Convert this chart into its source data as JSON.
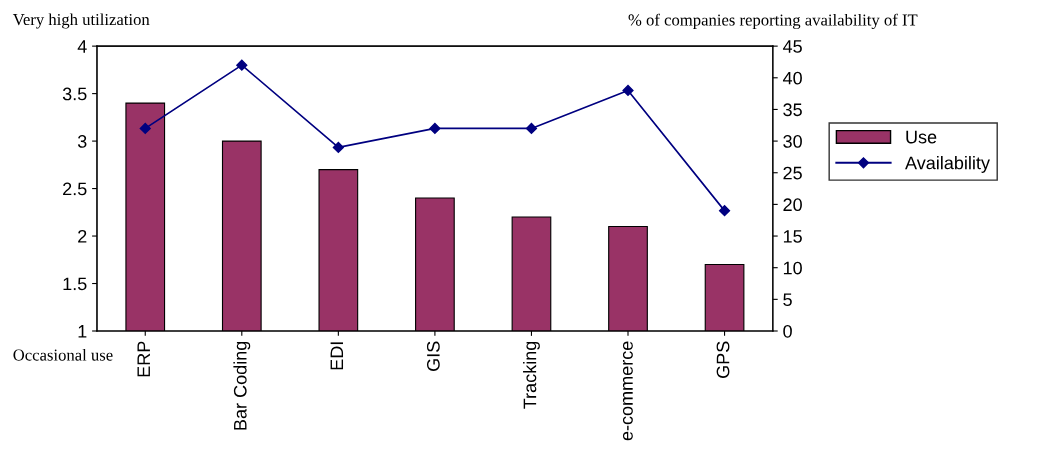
{
  "chart_data": {
    "type": "bar",
    "categories": [
      "ERP",
      "Bar Coding",
      "EDI",
      "GIS",
      "Tracking",
      "e-commerce",
      "GPS"
    ],
    "series": [
      {
        "name": "Use",
        "color": "#993366",
        "values": [
          3.4,
          3.0,
          2.7,
          2.4,
          2.2,
          2.1,
          1.7
        ]
      },
      {
        "name": "Availability",
        "type": "line",
        "axis": "y2",
        "color": "#000080",
        "marker": "diamond",
        "values": [
          32,
          42,
          29,
          32,
          32,
          38,
          19
        ]
      }
    ],
    "ylim": [
      1,
      4
    ],
    "yticks": [
      1,
      1.5,
      2,
      2.5,
      3,
      3.5,
      4
    ],
    "y2lim": [
      0,
      45
    ],
    "y2ticks": [
      0,
      5,
      10,
      15,
      20,
      25,
      30,
      35,
      40,
      45
    ],
    "y2label": "% of companies reporting availability of IT",
    "annotations": [
      "Very high utilization",
      "Occasional use"
    ],
    "legend": "right",
    "grid": false
  }
}
